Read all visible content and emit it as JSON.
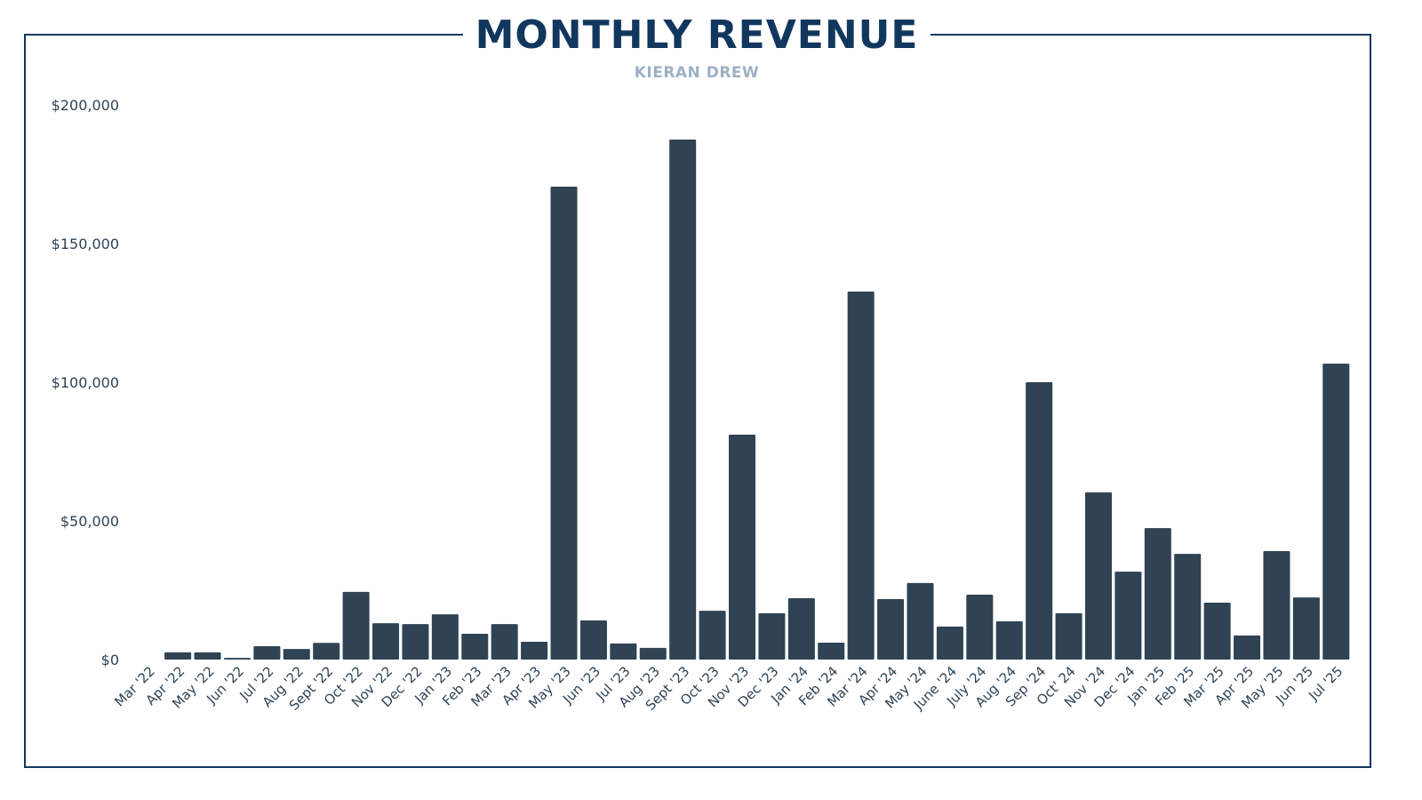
{
  "chart_data": {
    "type": "bar",
    "title": "MONTHLY REVENUE",
    "subtitle": "KIERAN DREW",
    "xlabel": "",
    "ylabel": "",
    "ylim": [
      0,
      200000
    ],
    "yticks": [
      0,
      50000,
      100000,
      150000,
      200000
    ],
    "ytick_labels": [
      "$0",
      "$50,000",
      "$100,000",
      "$150,000",
      "$200,000"
    ],
    "grid": false,
    "bar_color": "#2f4354",
    "categories": [
      "Mar '22",
      "Apr '22",
      "May '22",
      "Jun '22",
      "Jul '22",
      "Aug '22",
      "Sept '22",
      "Oct '22",
      "Nov '22",
      "Dec '22",
      "Jan '23",
      "Feb '23",
      "Mar '23",
      "Apr '23",
      "May '23",
      "Jun '23",
      "Jul '23",
      "Aug '23",
      "Sept '23",
      "Oct '23",
      "Nov '23",
      "Dec '23",
      "Jan '24",
      "Feb '24",
      "Mar '24",
      "Apr '24",
      "May '24",
      "June '24",
      "July '24",
      "Aug '24",
      "Sep '24",
      "Oct' 24",
      "Nov '24",
      "Dec '24",
      "Jan '25",
      "Feb '25",
      "Mar '25",
      "Apr '25",
      "May '25",
      "Jun '25",
      "Jul '25"
    ],
    "values": [
      0,
      2600,
      2600,
      600,
      4800,
      3800,
      6000,
      24400,
      13100,
      12800,
      16300,
      9300,
      12800,
      6400,
      170500,
      14100,
      5800,
      4200,
      187500,
      17600,
      81100,
      16700,
      22100,
      6100,
      132700,
      21800,
      27600,
      11900,
      23400,
      13800,
      100000,
      16700,
      60300,
      31700,
      47400,
      38100,
      20500,
      8700,
      39100,
      22400,
      106700
    ]
  }
}
